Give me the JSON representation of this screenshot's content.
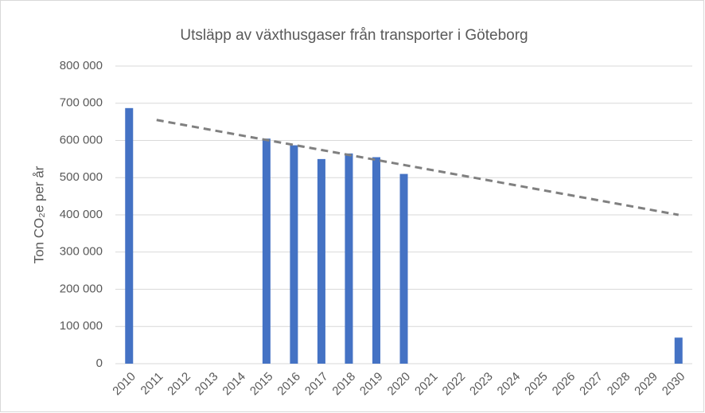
{
  "chart_data": {
    "type": "bar",
    "title": "Utsläpp av växthusgaser från transporter i Göteborg",
    "y_label": "Ton CO₂e per år",
    "categories": [
      "2010",
      "2011",
      "2012",
      "2013",
      "2014",
      "2015",
      "2016",
      "2017",
      "2018",
      "2019",
      "2020",
      "2021",
      "2022",
      "2023",
      "2024",
      "2025",
      "2026",
      "2027",
      "2028",
      "2029",
      "2030"
    ],
    "values": [
      687000,
      null,
      null,
      null,
      null,
      605000,
      587000,
      550000,
      565000,
      555000,
      510000,
      null,
      null,
      null,
      null,
      null,
      null,
      null,
      null,
      null,
      70000
    ],
    "color": "#4472c4",
    "trend": {
      "x": [
        "2011",
        "2030"
      ],
      "values": [
        655000,
        400000
      ],
      "color": "#808080"
    },
    "ylim": [
      0,
      800000
    ],
    "yticks": [
      0,
      {
        "value": 100000,
        "label": "100 000"
      },
      {
        "value": 200000,
        "label": "200 000"
      },
      {
        "value": 300000,
        "label": "300 000"
      },
      {
        "value": 400000,
        "label": "400 000"
      },
      {
        "value": 500000,
        "label": "500 000"
      },
      {
        "value": 600000,
        "label": "600 000"
      },
      {
        "value": 700000,
        "label": "700 000"
      },
      {
        "value": 800000,
        "label": "800 000"
      }
    ],
    "grid": true
  }
}
